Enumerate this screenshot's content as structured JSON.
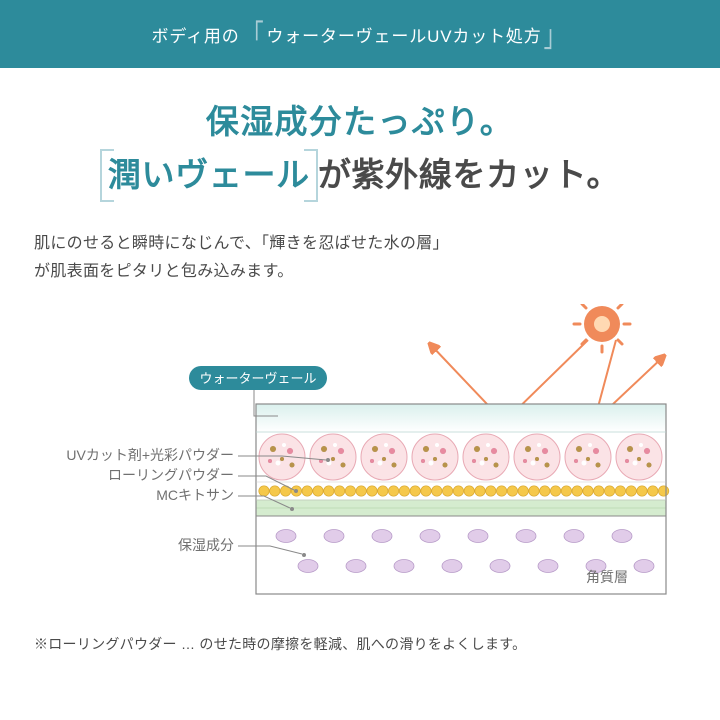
{
  "header": {
    "prefix": "ボディ用の",
    "feature": "ウォーターヴェールUVカット処方"
  },
  "headline": {
    "line1": "保湿成分たっぷり。",
    "boxed": "潤いヴェール",
    "line2_rest": "が紫外線をカット。"
  },
  "body": "肌にのせると瞬時になじんで、「輝きを忍ばせた水の層」\nが肌表面をピタリと包み込みます。",
  "diagram": {
    "badge": "ウォーターヴェール",
    "labels": {
      "uv_powder": "UVカット剤+光彩パウダー",
      "rolling_powder": "ローリングパウダー",
      "mc_chitosan": "MCキトサン",
      "moisturizer": "保湿成分",
      "stratum_corneum": "角質層"
    },
    "colors": {
      "badge_bg": "#2d8b9b",
      "veil_layer": "#daf0ed",
      "sky_gradient_top": "#eaf7f5",
      "sky_gradient_bottom": "#ffffff",
      "sphere_fill": "#fbe3e6",
      "sphere_stroke": "#e8a9b4",
      "dot_gold": "#b8934a",
      "dot_pink": "#e88aa0",
      "dot_white": "#ffffff",
      "rolling_fill": "#f5c84a",
      "rolling_stroke": "#d9a830",
      "mc_fill": "#d5eccf",
      "mc_stroke": "#a8caa0",
      "moist_fill": "#e1cce9",
      "moist_stroke": "#b79bc8",
      "border": "#8a8a8a",
      "leader": "#8a8a8a",
      "sun_fill": "#f08a5a",
      "sun_core": "#ffd9b3",
      "ray": "#f08a5a",
      "text": "#707070"
    }
  },
  "footnote": "※ローリングパウダー … のせた時の摩擦を軽減、肌への滑りをよくします。"
}
